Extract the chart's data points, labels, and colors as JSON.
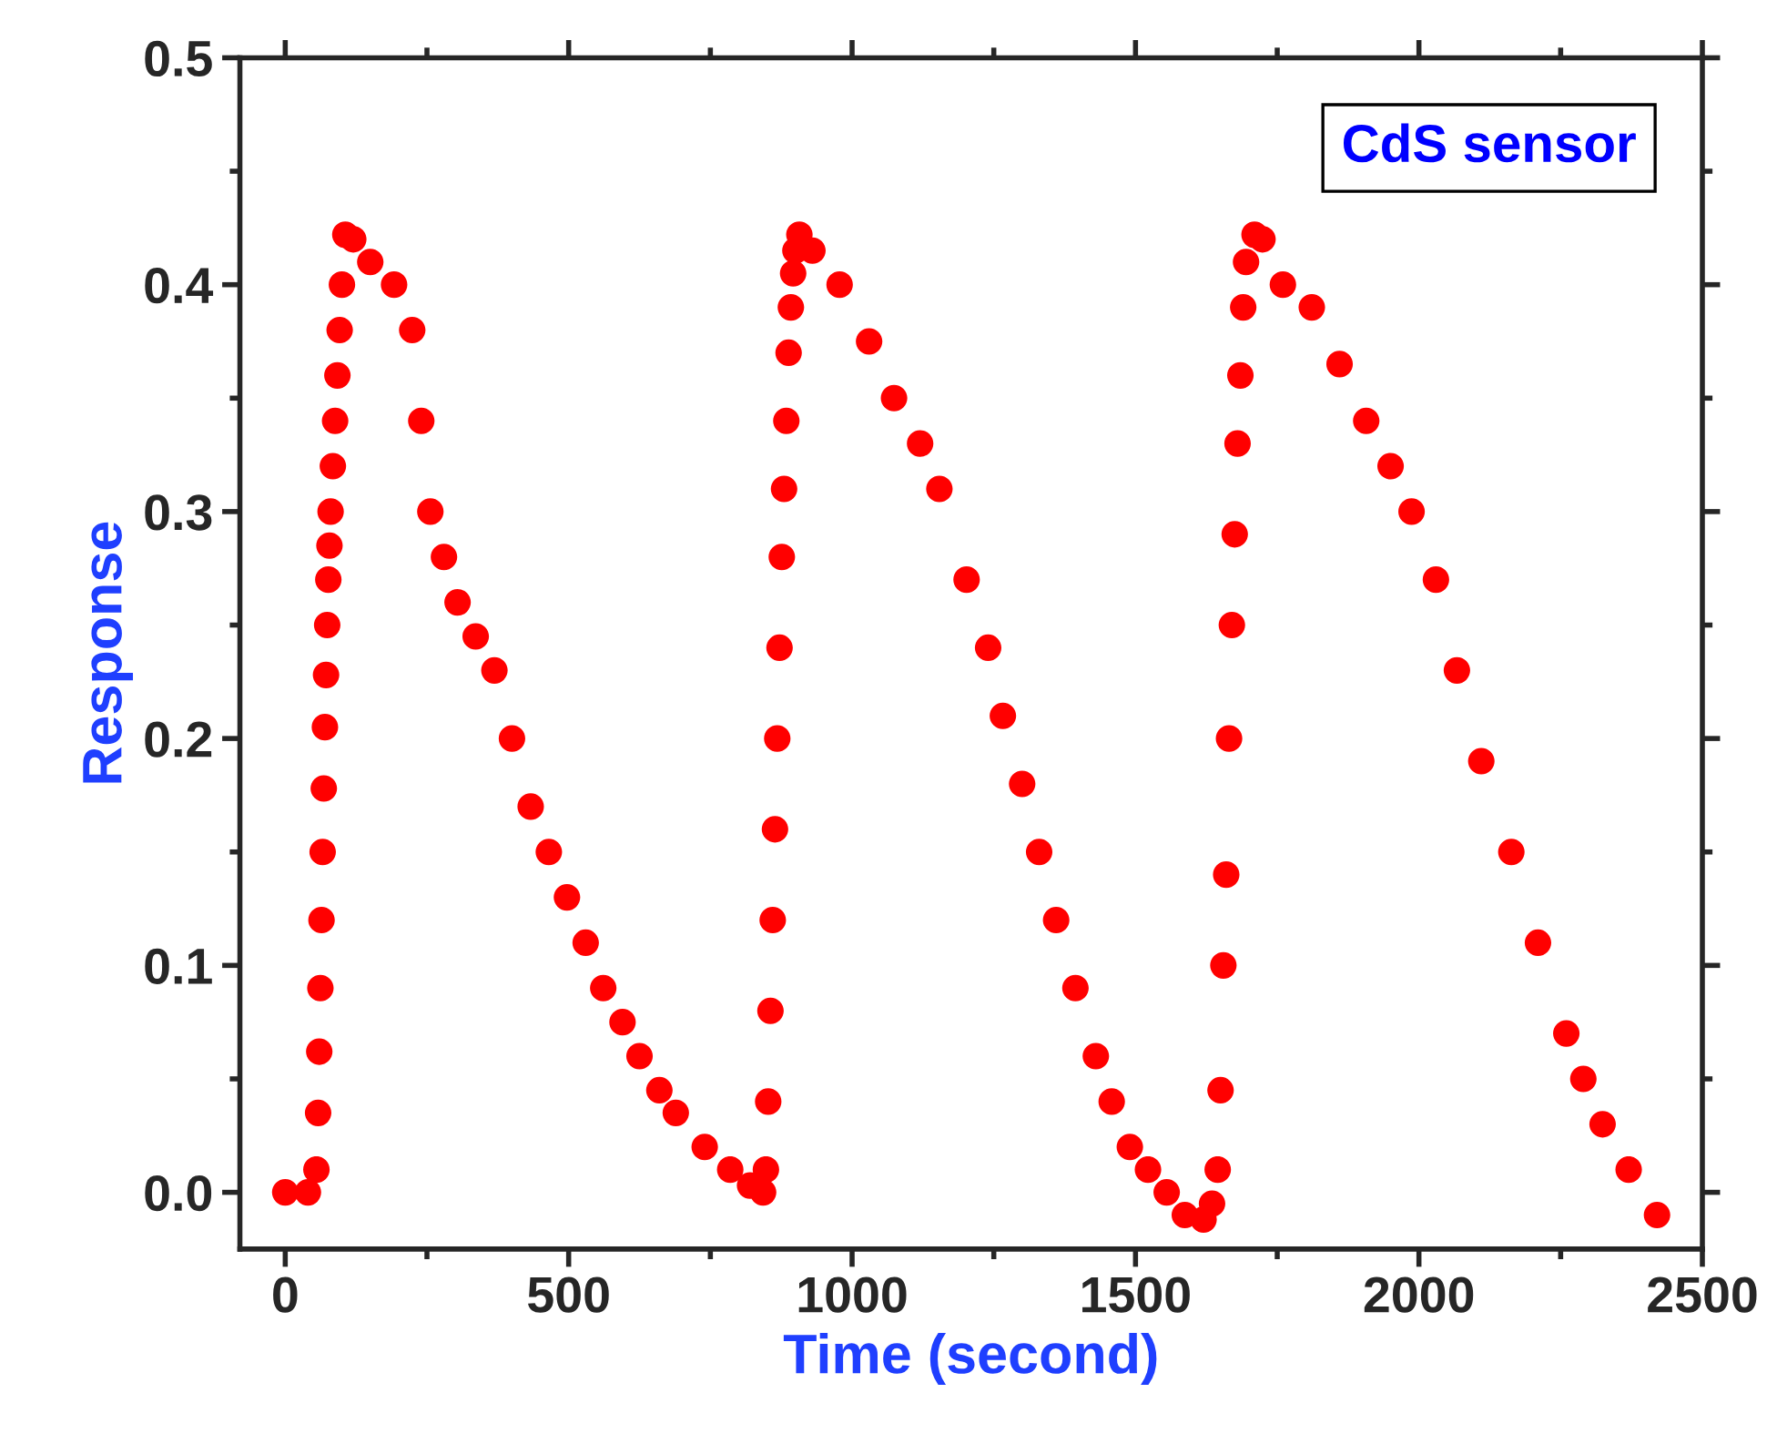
{
  "chart_data": {
    "type": "scatter",
    "xlabel": "Time (second)",
    "ylabel": "Response",
    "annotations": [
      "CdS sensor"
    ],
    "xlim": [
      -80,
      2500
    ],
    "xticks": [
      0,
      500,
      1000,
      1500,
      2000,
      2500
    ],
    "ylim": [
      -0.025,
      0.5
    ],
    "yticks": [
      {
        "value": 0,
        "label": "0.0"
      },
      {
        "value": 0.1,
        "label": "0.1"
      },
      {
        "value": 0.2,
        "label": "0.2"
      },
      {
        "value": 0.3,
        "label": "0.3"
      },
      {
        "value": 0.4,
        "label": "0.4"
      },
      {
        "value": 0.5,
        "label": "0.5"
      }
    ],
    "grid": false,
    "marker": "circle",
    "x": [
      0,
      40,
      55,
      58,
      60,
      62,
      64,
      66,
      68,
      70,
      72,
      74,
      76,
      78,
      80,
      84,
      88,
      92,
      96,
      100,
      106,
      120,
      150,
      192,
      224,
      240,
      256,
      280,
      304,
      336,
      369,
      400,
      433,
      465,
      497,
      530,
      561,
      595,
      625,
      660,
      689,
      740,
      785,
      820,
      843,
      848,
      852,
      856,
      860,
      864,
      868,
      872,
      876,
      880,
      884,
      888,
      892,
      896,
      900,
      907,
      930,
      978,
      1030,
      1074,
      1120,
      1154,
      1202,
      1240,
      1266,
      1300,
      1330,
      1360,
      1394,
      1430,
      1458,
      1490,
      1522,
      1555,
      1587,
      1620,
      1635,
      1645,
      1650,
      1655,
      1660,
      1665,
      1670,
      1675,
      1680,
      1685,
      1690,
      1695,
      1710,
      1724,
      1760,
      1811,
      1860,
      1907,
      1950,
      1987,
      2030,
      2067,
      2110,
      2163,
      2210,
      2260,
      2290,
      2324,
      2370,
      2420
    ],
    "series": [
      {
        "color": "#ff0000",
        "values": [
          0,
          0,
          0.01,
          0.035,
          0.062,
          0.09,
          0.12,
          0.15,
          0.178,
          0.205,
          0.228,
          0.25,
          0.27,
          0.285,
          0.3,
          0.32,
          0.34,
          0.36,
          0.38,
          0.4,
          0.422,
          0.42,
          0.41,
          0.4,
          0.38,
          0.34,
          0.3,
          0.28,
          0.26,
          0.245,
          0.23,
          0.2,
          0.17,
          0.15,
          0.13,
          0.11,
          0.09,
          0.075,
          0.06,
          0.045,
          0.035,
          0.02,
          0.01,
          0.003,
          0,
          0.01,
          0.04,
          0.08,
          0.12,
          0.16,
          0.2,
          0.24,
          0.28,
          0.31,
          0.34,
          0.37,
          0.39,
          0.405,
          0.415,
          0.422,
          0.415,
          0.4,
          0.375,
          0.35,
          0.33,
          0.31,
          0.27,
          0.24,
          0.21,
          0.18,
          0.15,
          0.12,
          0.09,
          0.06,
          0.04,
          0.02,
          0.01,
          0,
          -0.01,
          -0.012,
          -0.005,
          0.01,
          0.045,
          0.1,
          0.14,
          0.2,
          0.25,
          0.29,
          0.33,
          0.36,
          0.39,
          0.41,
          0.422,
          0.42,
          0.4,
          0.39,
          0.365,
          0.34,
          0.32,
          0.3,
          0.27,
          0.23,
          0.19,
          0.15,
          0.11,
          0.07,
          0.05,
          0.03,
          0.01,
          -0.01
        ]
      }
    ]
  }
}
